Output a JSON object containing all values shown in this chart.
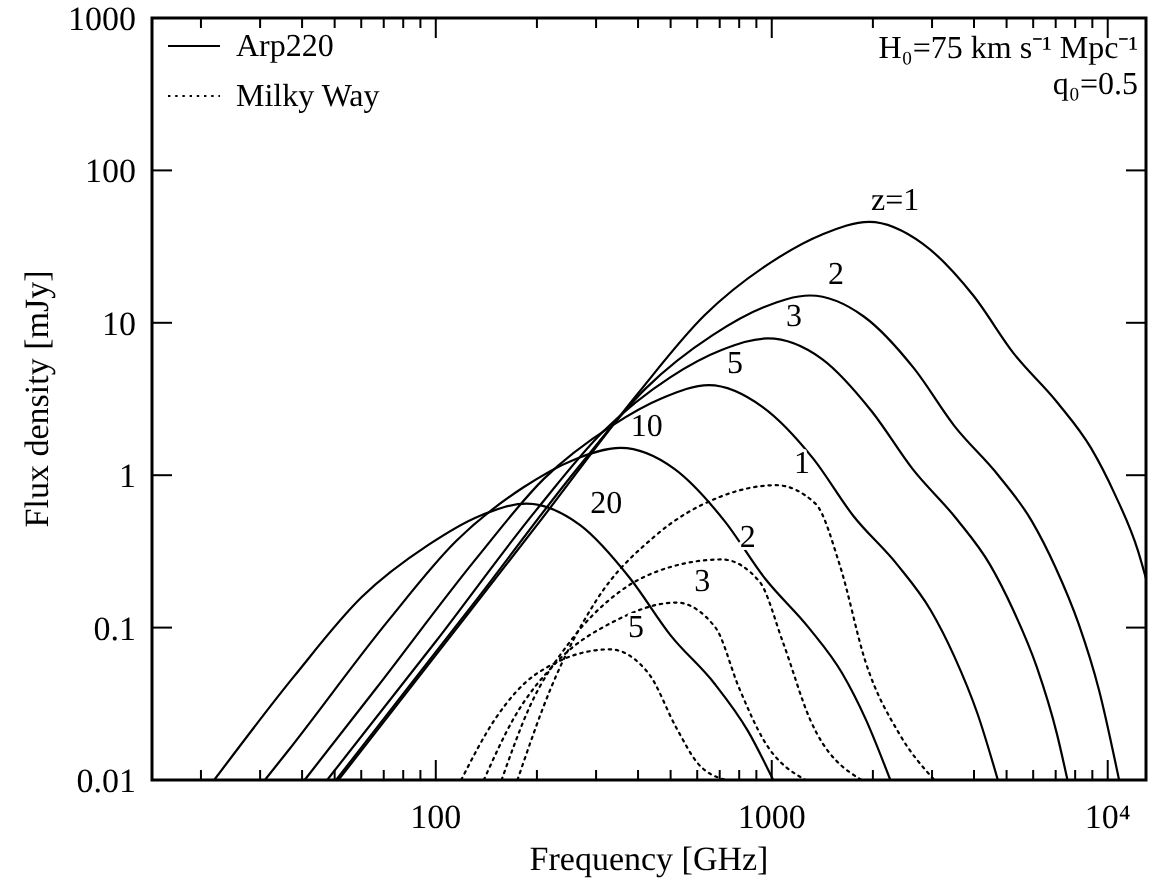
{
  "chart_data": {
    "type": "line",
    "xlabel": "Frequency [GHz]",
    "ylabel": "Flux density [mJy]",
    "log": "xy",
    "grid": false,
    "legend": "top left",
    "marker": "none",
    "xlim": [
      14.3,
      13000
    ],
    "ylim": [
      0.01,
      1000
    ],
    "xticks": [
      {
        "value": 20,
        "label": null
      },
      {
        "value": 30,
        "label": null
      },
      {
        "value": 40,
        "label": null
      },
      {
        "value": 50,
        "label": null
      },
      {
        "value": 60,
        "label": null
      },
      {
        "value": 70,
        "label": null
      },
      {
        "value": 80,
        "label": null
      },
      {
        "value": 90,
        "label": null
      },
      100,
      {
        "value": 200,
        "label": null
      },
      {
        "value": 300,
        "label": null
      },
      {
        "value": 400,
        "label": null
      },
      {
        "value": 500,
        "label": null
      },
      {
        "value": 600,
        "label": null
      },
      {
        "value": 700,
        "label": null
      },
      {
        "value": 800,
        "label": null
      },
      {
        "value": 900,
        "label": null
      },
      1000,
      {
        "value": 2000,
        "label": null
      },
      {
        "value": 3000,
        "label": null
      },
      {
        "value": 4000,
        "label": null
      },
      {
        "value": 5000,
        "label": null
      },
      {
        "value": 6000,
        "label": null
      },
      {
        "value": 7000,
        "label": null
      },
      {
        "value": 8000,
        "label": null
      },
      {
        "value": 9000,
        "label": null
      },
      {
        "value": 10000,
        "label": "10⁴"
      }
    ],
    "yticks": [
      0.01,
      0.1,
      1,
      10,
      100,
      1000
    ],
    "series": [
      {
        "name": "Arp220",
        "color": "#000000",
        "line_style": "solid",
        "x": [
          51.3,
          100,
          200,
          398,
          631,
          1000,
          1413,
          1950,
          2818,
          3981,
          5248,
          7079,
          8913,
          10470,
          12300,
          13000
        ],
        "values": [
          0.01,
          0.066,
          0.47,
          3.4,
          11.2,
          25.1,
          38,
          46,
          33,
          15.1,
          6.3,
          3.0,
          1.51,
          0.76,
          0.32,
          0.21
        ]
      },
      {
        "color": "#000000",
        "line_style": "solid",
        "x": [
          50.5,
          66.7,
          133,
          265,
          421,
          667,
          942,
          1300,
          1879,
          2655,
          3499,
          4721,
          5943,
          6982,
          8204,
          9419,
          10810
        ],
        "values": [
          0.01,
          0.022,
          0.155,
          1.12,
          3.7,
          8.3,
          12.6,
          15.1,
          11.0,
          5.0,
          2.1,
          1.0,
          0.5,
          0.25,
          0.105,
          0.039,
          0.01
        ]
      },
      {
        "color": "#000000",
        "line_style": "solid",
        "x": [
          47.5,
          100,
          199,
          316,
          500,
          706,
          975,
          1409,
          1991,
          2624,
          3540,
          4457,
          5236,
          6152,
          7063,
          7590
        ],
        "values": [
          0.01,
          0.081,
          0.59,
          1.95,
          4.4,
          6.6,
          7.9,
          5.8,
          2.6,
          1.1,
          0.52,
          0.26,
          0.13,
          0.055,
          0.02,
          0.01
        ]
      },
      {
        "color": "#000000",
        "line_style": "solid",
        "x": [
          40.7,
          66.5,
          133,
          210,
          333,
          471,
          650,
          940,
          1327,
          1750,
          2360,
          2972,
          3491,
          4102,
          4710
        ],
        "values": [
          0.01,
          0.04,
          0.29,
          0.95,
          2.1,
          3.2,
          3.9,
          2.8,
          1.29,
          0.54,
          0.26,
          0.13,
          0.065,
          0.027,
          0.01
        ]
      },
      {
        "color": "#000000",
        "line_style": "solid",
        "x": [
          31,
          36.3,
          72.4,
          115,
          182,
          257,
          355,
          513,
          724,
          955,
          1288,
          1622,
          1905,
          2254
        ],
        "values": [
          0.01,
          0.0155,
          0.112,
          0.37,
          0.83,
          1.26,
          1.51,
          1.1,
          0.5,
          0.21,
          0.1,
          0.05,
          0.025,
          0.01
        ]
      },
      {
        "color": "#000000",
        "line_style": "solid",
        "x": [
          21.9,
          37.9,
          60.1,
          95.3,
          135,
          186,
          269,
          379,
          500,
          675,
          849,
          1010
        ],
        "values": [
          0.01,
          0.048,
          0.158,
          0.35,
          0.54,
          0.65,
          0.47,
          0.21,
          0.089,
          0.043,
          0.021,
          0.01
        ]
      },
      {
        "name": "Milky Way",
        "color": "#000000",
        "line_style": "dotted",
        "x": [
          175,
          220,
          300,
          450,
          700,
          1030,
          1350,
          1600,
          1900,
          2400,
          3050
        ],
        "values": [
          0.01,
          0.04,
          0.15,
          0.4,
          0.72,
          0.86,
          0.65,
          0.25,
          0.06,
          0.02,
          0.01
        ]
      },
      {
        "color": "#000000",
        "line_style": "dotted",
        "x": [
          157,
          190,
          250,
          350,
          500,
          710,
          920,
          1080,
          1300,
          1850
        ],
        "values": [
          0.01,
          0.03,
          0.08,
          0.17,
          0.25,
          0.28,
          0.2,
          0.08,
          0.025,
          0.01
        ]
      },
      {
        "color": "#000000",
        "line_style": "dotted",
        "x": [
          139,
          170,
          230,
          340,
          520,
          680,
          800,
          950,
          1260
        ],
        "values": [
          0.01,
          0.025,
          0.06,
          0.11,
          0.146,
          0.1,
          0.04,
          0.018,
          0.01
        ]
      },
      {
        "color": "#000000",
        "line_style": "dotted",
        "x": [
          119,
          150,
          200,
          330,
          430,
          520,
          600,
          730
        ],
        "values": [
          0.01,
          0.025,
          0.05,
          0.072,
          0.05,
          0.022,
          0.013,
          0.01
        ]
      }
    ],
    "annotations": [
      "H₀=75 km s⁻¹ Mpc⁻¹",
      "q₀=0.5",
      {
        "text": "z=1",
        "x": 1950,
        "y": 46
      },
      {
        "text": "2",
        "x": 1300,
        "y": 15.1
      },
      {
        "text": "3",
        "x": 975,
        "y": 7.9
      },
      {
        "text": "5",
        "x": 650,
        "y": 3.9
      },
      {
        "text": "10",
        "x": 355,
        "y": 1.51
      },
      {
        "text": "20",
        "x": 269,
        "y": 0.47
      },
      {
        "text": "1",
        "x": 1030,
        "y": 0.86
      },
      {
        "text": "2",
        "x": 710,
        "y": 0.28
      },
      {
        "text": "3",
        "x": 520,
        "y": 0.146
      },
      {
        "text": "5",
        "x": 330,
        "y": 0.072
      }
    ]
  }
}
